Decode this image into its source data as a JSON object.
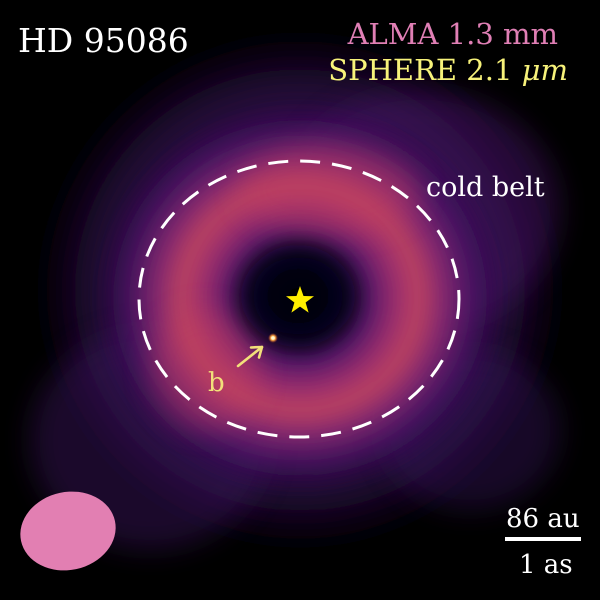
{
  "target": {
    "name": "HD 95086"
  },
  "instruments": {
    "alma": {
      "label": "ALMA 1.3 mm",
      "color": "#e07fb5"
    },
    "sphere": {
      "label_prefix": "SPHERE 2.1 ",
      "label_unit": "μm",
      "color": "#f7f27a"
    }
  },
  "annotations": {
    "belt_label": "cold belt",
    "planet_label": "b"
  },
  "scale": {
    "physical": "86 au",
    "angular": "1 as"
  },
  "beam": {
    "color": "#e27fb2"
  },
  "star": {
    "color": "#ffee00"
  },
  "colors": {
    "background": "#000000",
    "belt_peak": "#c8415d",
    "halo": "#5c1b78",
    "dashed_ring": "#ffffff"
  }
}
